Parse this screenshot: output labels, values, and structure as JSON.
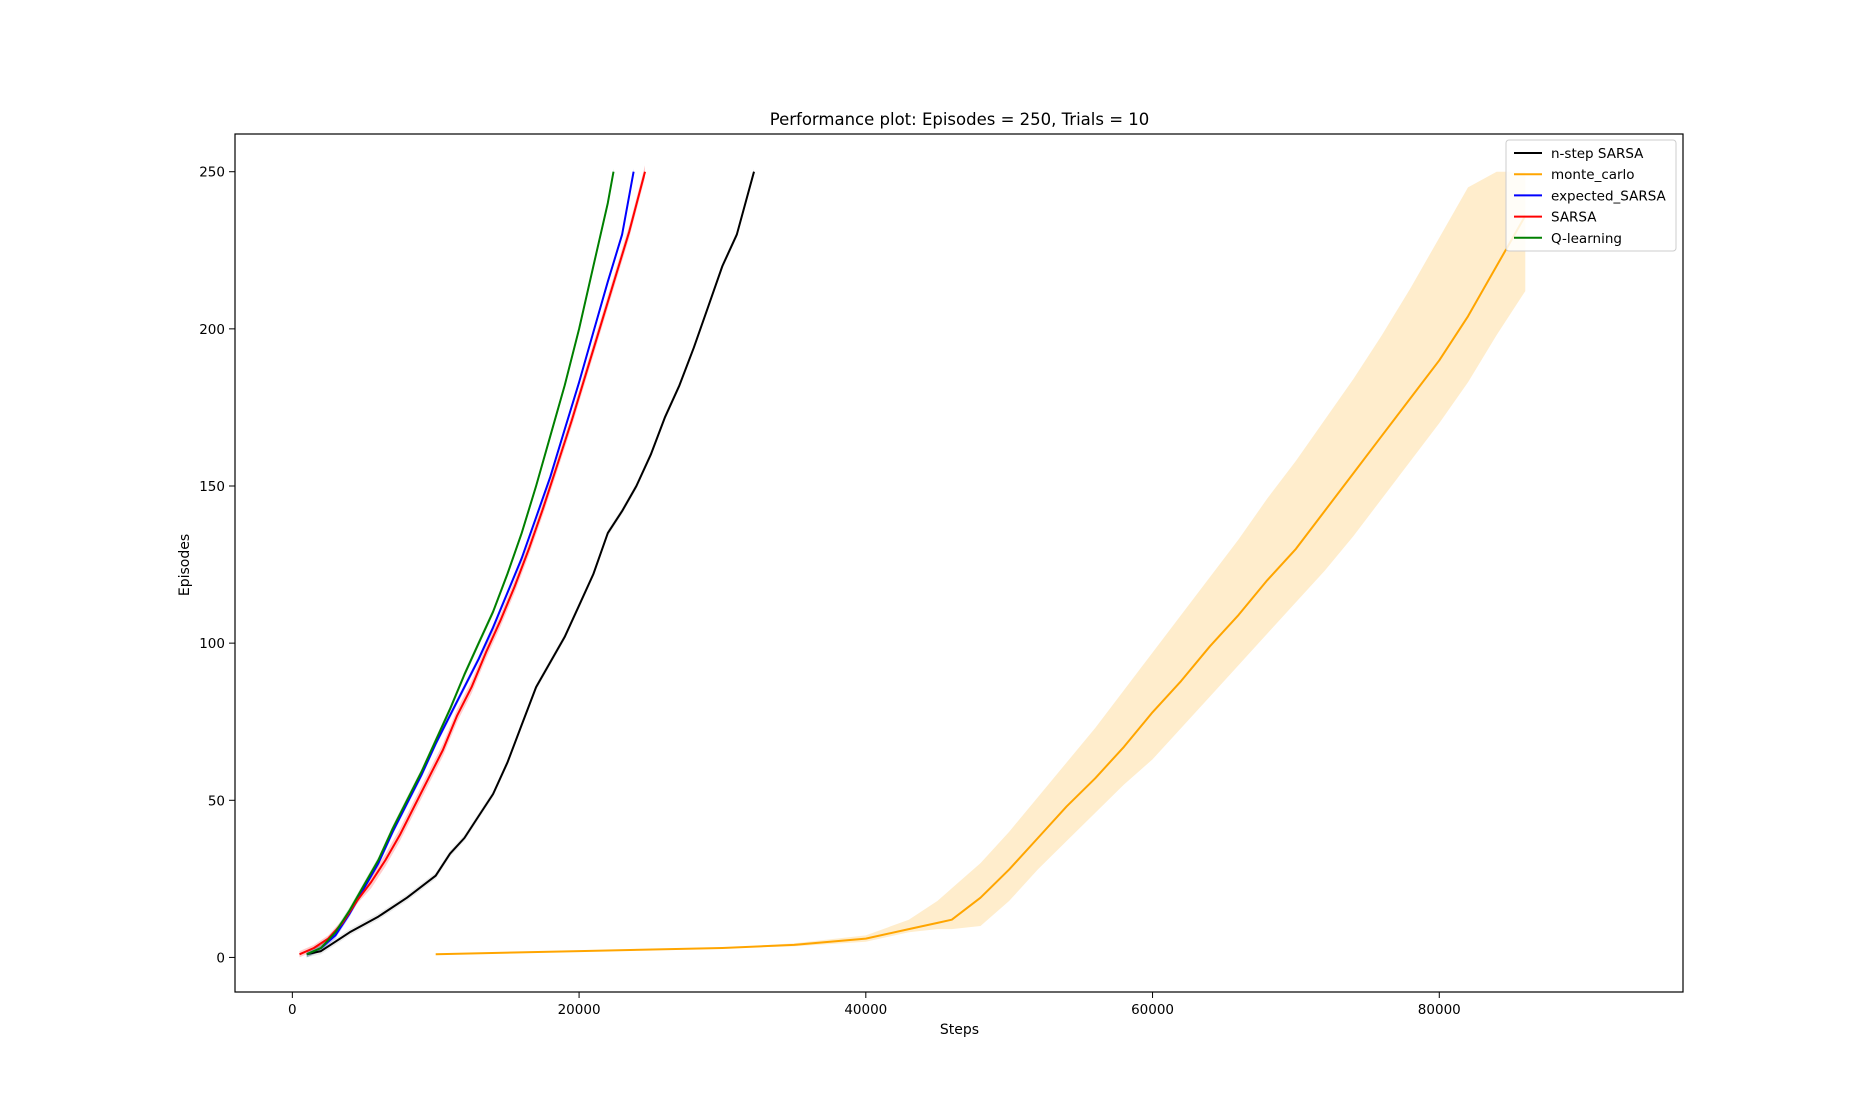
{
  "chart_data": {
    "type": "line",
    "title": "Performance plot: Episodes = 250, Trials = 10",
    "xlabel": "Steps",
    "ylabel": "Episodes",
    "xlim": [
      -4000,
      97000
    ],
    "ylim": [
      -11,
      262
    ],
    "xticks": [
      0,
      20000,
      40000,
      60000,
      80000
    ],
    "xtick_labels": [
      "0",
      "20000",
      "40000",
      "60000",
      "80000"
    ],
    "yticks": [
      0,
      50,
      100,
      150,
      200,
      250
    ],
    "ytick_labels": [
      "0",
      "50",
      "100",
      "150",
      "200",
      "250"
    ],
    "grid": false,
    "legend_position": "upper right",
    "series": [
      {
        "name": "n-step SARSA",
        "color": "#000000",
        "band_color": "#999999",
        "x": [
          1000,
          2000,
          3000,
          4000,
          6000,
          8000,
          10000,
          11000,
          12000,
          13000,
          14000,
          15000,
          16000,
          17000,
          18000,
          19000,
          20000,
          21000,
          22000,
          23000,
          24000,
          25000,
          26000,
          27000,
          28000,
          29000,
          30000,
          31000,
          32200
        ],
        "y": [
          1,
          2,
          5,
          8,
          13,
          19,
          26,
          33,
          38,
          45,
          52,
          62,
          74,
          86,
          94,
          102,
          112,
          122,
          135,
          142,
          150,
          160,
          172,
          182,
          194,
          207,
          220,
          230,
          250
        ],
        "band": [
          [
            0,
            1
          ],
          [
            1,
            3
          ],
          [
            4,
            6
          ],
          [
            7,
            9
          ],
          [
            12,
            14
          ],
          [
            18,
            20
          ],
          [
            25,
            27
          ],
          [
            32,
            34
          ],
          [
            37,
            39
          ],
          [
            44,
            46
          ],
          [
            51,
            53
          ],
          [
            61,
            63
          ],
          [
            73,
            75
          ],
          [
            85,
            87
          ],
          [
            93,
            95
          ],
          [
            101,
            103
          ],
          [
            111,
            113
          ],
          [
            121,
            123
          ],
          [
            134,
            136
          ],
          [
            141,
            143
          ],
          [
            149,
            151
          ],
          [
            159,
            161
          ],
          [
            171,
            173
          ],
          [
            181,
            183
          ],
          [
            193,
            195
          ],
          [
            206,
            208
          ],
          [
            219,
            221
          ],
          [
            229,
            231
          ],
          [
            249,
            251
          ]
        ]
      },
      {
        "name": "monte_carlo",
        "color": "#ffa500",
        "band_color": "#ffa500",
        "x": [
          10000,
          20000,
          30000,
          35000,
          40000,
          43000,
          45000,
          46000,
          48000,
          50000,
          52000,
          54000,
          56000,
          58000,
          60000,
          62000,
          64000,
          66000,
          68000,
          70000,
          72000,
          74000,
          76000,
          78000,
          80000,
          82000,
          84000,
          86000
        ],
        "y": [
          1,
          2,
          3,
          4,
          6,
          9,
          11,
          12,
          19,
          28,
          38,
          48,
          57,
          67,
          78,
          88,
          99,
          109,
          120,
          130,
          142,
          154,
          166,
          178,
          190,
          204,
          220,
          236
        ],
        "band": [
          [
            1,
            1
          ],
          [
            2,
            2
          ],
          [
            3,
            3
          ],
          [
            3.5,
            4.5
          ],
          [
            5,
            7
          ],
          [
            8,
            12
          ],
          [
            9,
            18
          ],
          [
            9,
            22
          ],
          [
            10,
            30
          ],
          [
            18,
            40
          ],
          [
            28,
            51
          ],
          [
            37,
            62
          ],
          [
            46,
            73
          ],
          [
            55,
            85
          ],
          [
            63,
            97
          ],
          [
            73,
            109
          ],
          [
            83,
            121
          ],
          [
            93,
            133
          ],
          [
            103,
            146
          ],
          [
            113,
            158
          ],
          [
            123,
            171
          ],
          [
            134,
            184
          ],
          [
            146,
            198
          ],
          [
            158,
            213
          ],
          [
            170,
            229
          ],
          [
            183,
            245
          ],
          [
            198,
            250
          ],
          [
            212,
            250
          ]
        ]
      },
      {
        "name": "expected_SARSA",
        "color": "#0000ff",
        "band_color": "#0000ff",
        "x": [
          1000,
          2000,
          3000,
          4000,
          5000,
          6000,
          7000,
          8000,
          9000,
          10000,
          11000,
          12000,
          13000,
          14000,
          15000,
          16000,
          17000,
          18000,
          19000,
          20000,
          21000,
          22000,
          23000,
          23800
        ],
        "y": [
          1,
          3,
          7,
          14,
          22,
          30,
          40,
          49,
          58,
          68,
          77,
          86,
          95,
          105,
          116,
          127,
          140,
          153,
          168,
          183,
          199,
          215,
          230,
          250
        ],
        "band": [
          [
            0,
            2
          ],
          [
            2,
            4
          ],
          [
            6,
            8
          ],
          [
            13,
            15
          ],
          [
            21,
            23
          ],
          [
            29,
            31
          ],
          [
            39,
            41
          ],
          [
            48,
            50
          ],
          [
            57,
            59
          ],
          [
            67,
            69
          ],
          [
            76,
            78
          ],
          [
            85,
            87
          ],
          [
            94,
            96
          ],
          [
            104,
            106
          ],
          [
            115,
            117
          ],
          [
            126,
            128
          ],
          [
            139,
            141
          ],
          [
            152,
            154
          ],
          [
            167,
            169
          ],
          [
            182,
            184
          ],
          [
            198,
            200
          ],
          [
            214,
            216
          ],
          [
            229,
            231
          ],
          [
            249,
            251
          ]
        ]
      },
      {
        "name": "SARSA",
        "color": "#ff0000",
        "band_color": "#ff0000",
        "x": [
          500,
          1500,
          2500,
          3500,
          4500,
          5500,
          6500,
          7500,
          8500,
          9500,
          10500,
          11500,
          12500,
          13500,
          14500,
          15500,
          16500,
          17500,
          18500,
          19500,
          20500,
          21500,
          22500,
          23500,
          24600
        ],
        "y": [
          1,
          3,
          6,
          11,
          18,
          24,
          31,
          39,
          48,
          57,
          66,
          77,
          86,
          97,
          107,
          118,
          130,
          143,
          157,
          171,
          186,
          201,
          216,
          231,
          250
        ],
        "band": [
          [
            0,
            2
          ],
          [
            2,
            4
          ],
          [
            5,
            7
          ],
          [
            10,
            12
          ],
          [
            17,
            19
          ],
          [
            22,
            26
          ],
          [
            29,
            33
          ],
          [
            37,
            41
          ],
          [
            46,
            50
          ],
          [
            55,
            59
          ],
          [
            64,
            68
          ],
          [
            75,
            79
          ],
          [
            84,
            88
          ],
          [
            95,
            99
          ],
          [
            105,
            109
          ],
          [
            116,
            120
          ],
          [
            128,
            132
          ],
          [
            141,
            145
          ],
          [
            155,
            159
          ],
          [
            169,
            173
          ],
          [
            184,
            188
          ],
          [
            199,
            203
          ],
          [
            214,
            218
          ],
          [
            229,
            233
          ],
          [
            248,
            252
          ]
        ]
      },
      {
        "name": "Q-learning",
        "color": "#008000",
        "band_color": "#008000",
        "x": [
          1000,
          2000,
          3000,
          4000,
          5000,
          6000,
          7000,
          8000,
          9000,
          10000,
          11000,
          12000,
          13000,
          14000,
          15000,
          16000,
          17000,
          18000,
          19000,
          20000,
          21000,
          22000,
          22400
        ],
        "y": [
          1,
          3,
          8,
          15,
          23,
          31,
          41,
          50,
          59,
          69,
          79,
          90,
          100,
          110,
          122,
          135,
          150,
          166,
          182,
          200,
          220,
          240,
          250
        ],
        "band": [
          [
            0,
            2
          ],
          [
            2,
            4
          ],
          [
            7,
            9
          ],
          [
            14,
            16
          ],
          [
            22,
            24
          ],
          [
            30,
            32
          ],
          [
            40,
            42
          ],
          [
            49,
            51
          ],
          [
            58,
            60
          ],
          [
            68,
            70
          ],
          [
            78,
            80
          ],
          [
            89,
            91
          ],
          [
            99,
            101
          ],
          [
            109,
            111
          ],
          [
            121,
            123
          ],
          [
            134,
            136
          ],
          [
            149,
            151
          ],
          [
            165,
            167
          ],
          [
            181,
            183
          ],
          [
            199,
            201
          ],
          [
            219,
            221
          ],
          [
            239,
            241
          ],
          [
            249,
            251
          ]
        ]
      }
    ]
  }
}
